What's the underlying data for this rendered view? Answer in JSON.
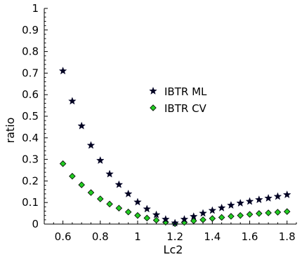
{
  "chart_data": {
    "type": "scatter",
    "xlabel": "Lc2",
    "ylabel": "ratio",
    "xlim": [
      0.5,
      1.85
    ],
    "ylim": [
      0,
      1
    ],
    "xticks": [
      "0.6",
      "0.8",
      "1",
      "1.2",
      "1.4",
      "1.6",
      "1.8"
    ],
    "yticks": [
      "0",
      "0.1",
      "0.2",
      "0.3",
      "0.4",
      "0.5",
      "0.6",
      "0.7",
      "0.8",
      "0.9",
      "1"
    ],
    "grid": false,
    "legend_position": "center-right",
    "x": [
      0.6,
      0.65,
      0.7,
      0.75,
      0.8,
      0.85,
      0.9,
      0.95,
      1.0,
      1.05,
      1.1,
      1.15,
      1.2,
      1.25,
      1.3,
      1.35,
      1.4,
      1.45,
      1.5,
      1.55,
      1.6,
      1.65,
      1.7,
      1.75,
      1.8
    ],
    "series": [
      {
        "name": "IBTR ML",
        "marker": "star",
        "color": "#000022",
        "values": [
          0.71,
          0.57,
          0.455,
          0.365,
          0.295,
          0.232,
          0.183,
          0.14,
          0.102,
          0.07,
          0.043,
          0.022,
          0.005,
          0.022,
          0.035,
          0.05,
          0.063,
          0.075,
          0.087,
          0.097,
          0.105,
          0.113,
          0.12,
          0.128,
          0.136
        ]
      },
      {
        "name": "IBTR CV",
        "marker": "diamond",
        "color": "#22cc22",
        "values": [
          0.28,
          0.222,
          0.182,
          0.146,
          0.117,
          0.093,
          0.074,
          0.056,
          0.04,
          0.028,
          0.018,
          0.009,
          0.002,
          0.008,
          0.015,
          0.02,
          0.026,
          0.031,
          0.036,
          0.04,
          0.045,
          0.049,
          0.052,
          0.055,
          0.058
        ]
      }
    ]
  }
}
